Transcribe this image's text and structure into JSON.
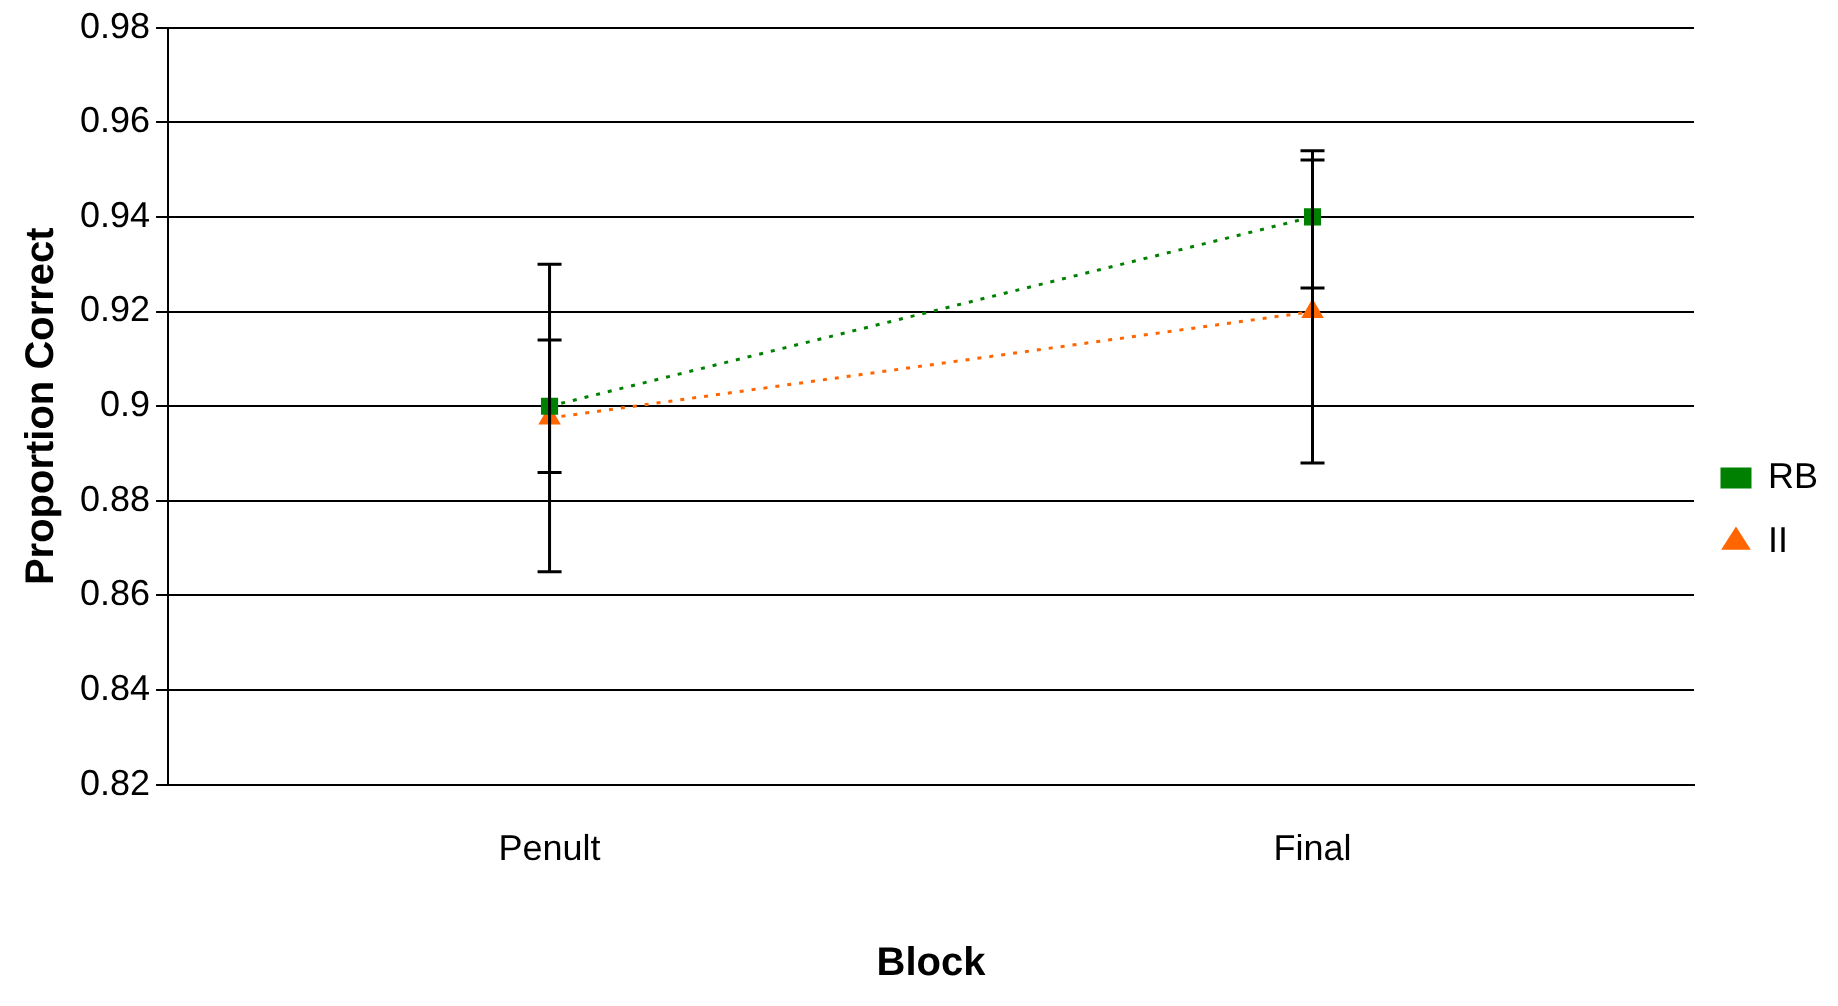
{
  "chart_data": {
    "type": "line",
    "xlabel": "Block",
    "ylabel": "Proportion Correct",
    "categories": [
      "Penult",
      "Final"
    ],
    "series": [
      {
        "name": "RB",
        "color": "#008000",
        "values": [
          0.9,
          0.94
        ],
        "errors": [
          [
            0.886,
            0.914
          ],
          [
            0.925,
            0.954
          ]
        ],
        "marker": "square"
      },
      {
        "name": "II",
        "color": "#ff6600",
        "values": [
          0.8975,
          0.92
        ],
        "errors": [
          [
            0.865,
            0.93
          ],
          [
            0.888,
            0.952
          ]
        ],
        "marker": "triangle"
      }
    ],
    "ylim": [
      0.82,
      0.98
    ],
    "yticks": [
      0.82,
      0.84,
      0.86,
      0.88,
      0.9,
      0.92,
      0.94,
      0.96,
      0.98
    ],
    "grid": "y",
    "legend": "right",
    "line_style": "dotted"
  }
}
